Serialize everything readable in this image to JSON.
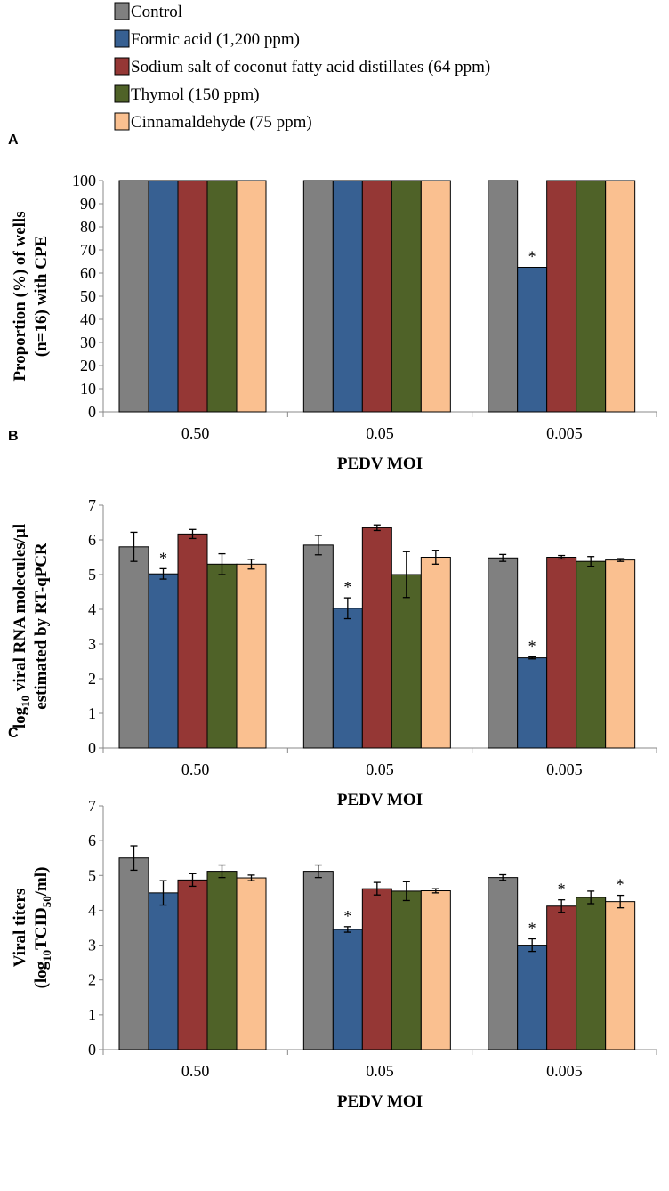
{
  "figure": {
    "legend": {
      "items": [
        {
          "label": "Control",
          "color": "#808080"
        },
        {
          "label": "Formic acid (1,200 ppm)",
          "color": "#376092"
        },
        {
          "label": "Sodium salt of coconut fatty acid distillates (64 ppm)",
          "color": "#953735"
        },
        {
          "label": "Thymol (150 ppm)",
          "color": "#4f6228"
        },
        {
          "label": "Cinnamaldehyde (75 ppm)",
          "color": "#fac090"
        }
      ]
    },
    "significance_marker": "*"
  },
  "chart_data": [
    {
      "panel": "A",
      "type": "bar",
      "categories": [
        "0.50",
        "0.05",
        "0.005"
      ],
      "xlabel": "PEDV MOI",
      "ylabel_lines": [
        "Proportion (%) of wells",
        "(n=16)  with CPE"
      ],
      "ylim": [
        0,
        100
      ],
      "yticks": [
        0,
        10,
        20,
        30,
        40,
        50,
        60,
        70,
        80,
        90,
        100
      ],
      "series": [
        {
          "name": "Control",
          "values": [
            100,
            100,
            100
          ],
          "errors": [
            0,
            0,
            0
          ],
          "sig": [
            false,
            false,
            false
          ]
        },
        {
          "name": "Formic acid (1,200 ppm)",
          "values": [
            100,
            100,
            62.5
          ],
          "errors": [
            0,
            0,
            0
          ],
          "sig": [
            false,
            false,
            true
          ]
        },
        {
          "name": "Sodium salt of coconut fatty acid distillates (64 ppm)",
          "values": [
            100,
            100,
            100
          ],
          "errors": [
            0,
            0,
            0
          ],
          "sig": [
            false,
            false,
            false
          ]
        },
        {
          "name": "Thymol (150 ppm)",
          "values": [
            100,
            100,
            100
          ],
          "errors": [
            0,
            0,
            0
          ],
          "sig": [
            false,
            false,
            false
          ]
        },
        {
          "name": "Cinnamaldehyde (75 ppm)",
          "values": [
            100,
            100,
            100
          ],
          "errors": [
            0,
            0,
            0
          ],
          "sig": [
            false,
            false,
            false
          ]
        }
      ]
    },
    {
      "panel": "B",
      "type": "bar",
      "categories": [
        "0.50",
        "0.05",
        "0.005"
      ],
      "xlabel": "PEDV MOI",
      "ylabel_line1": {
        "prefix": "log",
        "sub": "10",
        "rest": " viral RNA molecules/µl"
      },
      "ylabel_line2": "estimated by RT-qPCR",
      "ylim": [
        0,
        7
      ],
      "yticks": [
        0,
        1,
        2,
        3,
        4,
        5,
        6,
        7
      ],
      "series": [
        {
          "name": "Control",
          "values": [
            5.8,
            5.85,
            5.48
          ],
          "errors": [
            0.42,
            0.28,
            0.1
          ],
          "sig": [
            false,
            false,
            false
          ]
        },
        {
          "name": "Formic acid (1,200 ppm)",
          "values": [
            5.02,
            4.03,
            2.6
          ],
          "errors": [
            0.15,
            0.3,
            0.03
          ],
          "sig": [
            true,
            true,
            true
          ]
        },
        {
          "name": "Sodium salt of coconut fatty acid distillates (64 ppm)",
          "values": [
            6.17,
            6.35,
            5.5
          ],
          "errors": [
            0.13,
            0.08,
            0.05
          ],
          "sig": [
            false,
            false,
            false
          ]
        },
        {
          "name": "Thymol (150 ppm)",
          "values": [
            5.3,
            5.0,
            5.38
          ],
          "errors": [
            0.3,
            0.66,
            0.14
          ],
          "sig": [
            false,
            false,
            false
          ]
        },
        {
          "name": "Cinnamaldehyde (75 ppm)",
          "values": [
            5.3,
            5.5,
            5.42
          ],
          "errors": [
            0.14,
            0.2,
            0.04
          ],
          "sig": [
            false,
            false,
            false
          ]
        }
      ]
    },
    {
      "panel": "C",
      "type": "bar",
      "categories": [
        "0.50",
        "0.05",
        "0.005"
      ],
      "xlabel": "PEDV MOI",
      "ylabel_line1": "Viral titers",
      "ylabel_line2": {
        "prefix": "(log",
        "sub1": "10",
        "mid": "TCID",
        "sub2": "50",
        "rest": "/ml)"
      },
      "ylim": [
        0,
        7
      ],
      "yticks": [
        0,
        1,
        2,
        3,
        4,
        5,
        6,
        7
      ],
      "series": [
        {
          "name": "Control",
          "values": [
            5.5,
            5.12,
            4.94
          ],
          "errors": [
            0.35,
            0.18,
            0.08
          ],
          "sig": [
            false,
            false,
            false
          ]
        },
        {
          "name": "Formic acid (1,200 ppm)",
          "values": [
            4.5,
            3.45,
            3.0
          ],
          "errors": [
            0.35,
            0.08,
            0.18
          ],
          "sig": [
            false,
            true,
            true
          ]
        },
        {
          "name": "Sodium salt of coconut fatty acid distillates (64 ppm)",
          "values": [
            4.87,
            4.62,
            4.12
          ],
          "errors": [
            0.18,
            0.18,
            0.18
          ],
          "sig": [
            false,
            false,
            true
          ]
        },
        {
          "name": "Thymol (150 ppm)",
          "values": [
            5.12,
            4.55,
            4.37
          ],
          "errors": [
            0.18,
            0.27,
            0.18
          ],
          "sig": [
            false,
            false,
            false
          ]
        },
        {
          "name": "Cinnamaldehyde (75 ppm)",
          "values": [
            4.93,
            4.56,
            4.25
          ],
          "errors": [
            0.08,
            0.06,
            0.18
          ],
          "sig": [
            false,
            false,
            true
          ]
        }
      ]
    }
  ]
}
